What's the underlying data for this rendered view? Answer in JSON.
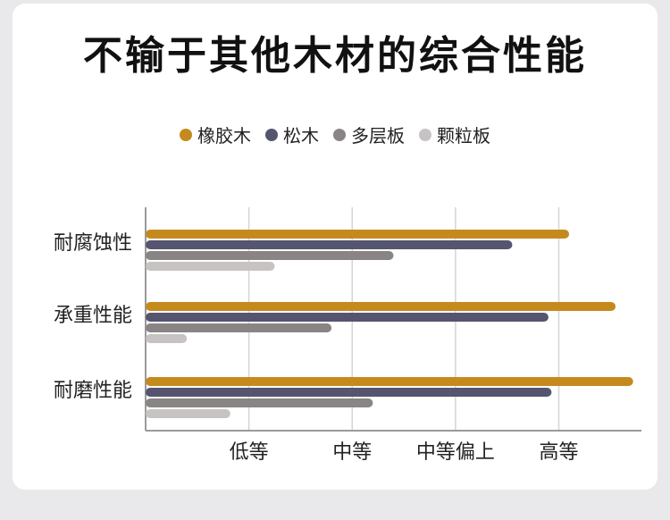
{
  "title": "不输于其他木材的综合性能",
  "colors": {
    "background": "#e9e9eb",
    "card": "#ffffff",
    "grid": "#d4d4d4",
    "axis": "#9a9a9a"
  },
  "chart_data": {
    "type": "bar",
    "orientation": "horizontal",
    "categories": [
      "耐腐蚀性",
      "承重性能",
      "耐磨性能"
    ],
    "x_ticks": [
      "低等",
      "中等",
      "中等偏上",
      "高等"
    ],
    "x_tick_values": [
      1,
      2,
      3,
      4
    ],
    "xlim": [
      0,
      4.8
    ],
    "grid": true,
    "legend_position": "top-center",
    "series": [
      {
        "name": "橡胶木",
        "color": "#c58a1e",
        "values": [
          4.1,
          4.55,
          4.72
        ]
      },
      {
        "name": "松木",
        "color": "#555570",
        "values": [
          3.55,
          3.9,
          3.93
        ]
      },
      {
        "name": "多层板",
        "color": "#8a8585",
        "values": [
          2.4,
          1.8,
          2.2
        ]
      },
      {
        "name": "颗粒板",
        "color": "#c7c3c3",
        "values": [
          1.25,
          0.4,
          0.82
        ]
      }
    ]
  }
}
